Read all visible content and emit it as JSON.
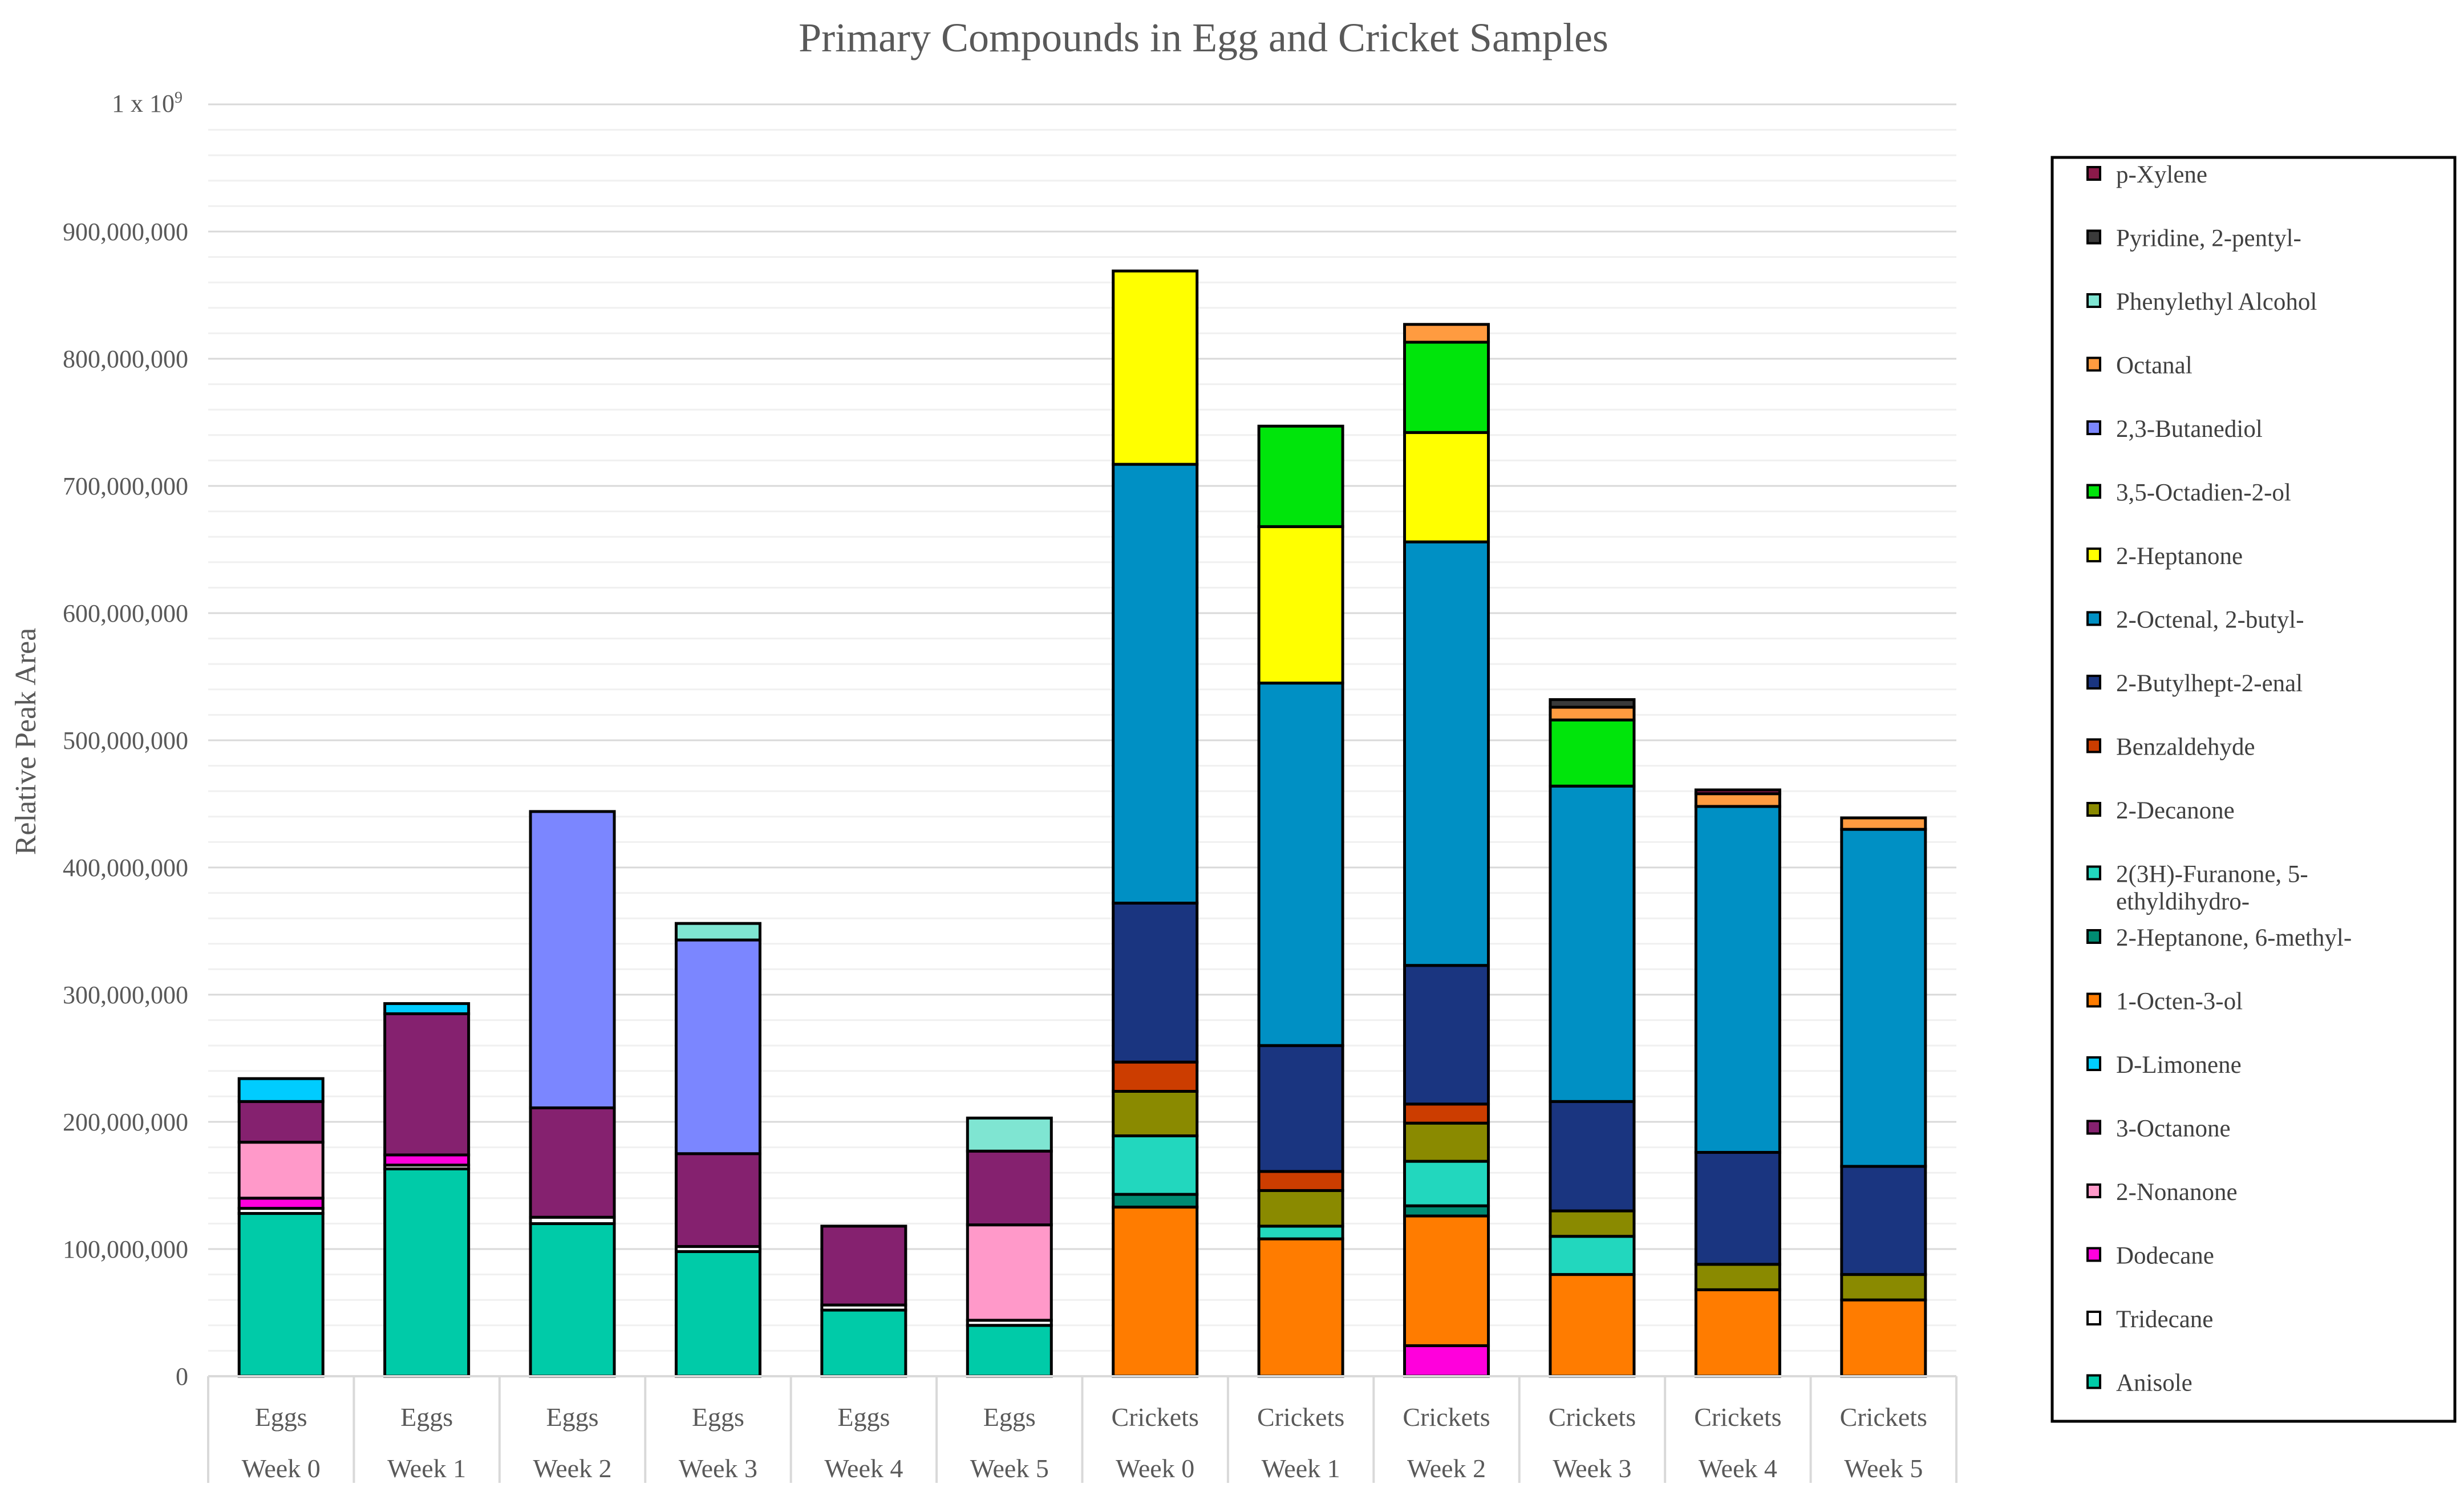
{
  "chart_data": {
    "type": "bar",
    "stacked": true,
    "title": "Primary Compounds in Egg and Cricket Samples",
    "ylabel": "Relative Peak Area",
    "xlabel": "",
    "ylim": [
      0,
      1000000000
    ],
    "y_ticks": [
      {
        "value": 0,
        "label": "0"
      },
      {
        "value": 100000000,
        "label": "100,000,000"
      },
      {
        "value": 200000000,
        "label": "200,000,000"
      },
      {
        "value": 300000000,
        "label": "300,000,000"
      },
      {
        "value": 400000000,
        "label": "400,000,000"
      },
      {
        "value": 500000000,
        "label": "500,000,000"
      },
      {
        "value": 600000000,
        "label": "600,000,000"
      },
      {
        "value": 700000000,
        "label": "700,000,000"
      },
      {
        "value": 800000000,
        "label": "800,000,000"
      },
      {
        "value": 900000000,
        "label": "900,000,000"
      }
    ],
    "y_top_label": {
      "base": "1 x 10",
      "exponent": "9"
    },
    "minor_grid_step": 20000000,
    "categories": [
      {
        "group": "Eggs",
        "week": "Week 0"
      },
      {
        "group": "Eggs",
        "week": "Week 1"
      },
      {
        "group": "Eggs",
        "week": "Week 2"
      },
      {
        "group": "Eggs",
        "week": "Week 3"
      },
      {
        "group": "Eggs",
        "week": "Week 4"
      },
      {
        "group": "Eggs",
        "week": "Week 5"
      },
      {
        "group": "Crickets",
        "week": "Week 0"
      },
      {
        "group": "Crickets",
        "week": "Week 1"
      },
      {
        "group": "Crickets",
        "week": "Week 2"
      },
      {
        "group": "Crickets",
        "week": "Week 3"
      },
      {
        "group": "Crickets",
        "week": "Week 4"
      },
      {
        "group": "Crickets",
        "week": "Week 5"
      }
    ],
    "series": [
      {
        "name": "Anisole",
        "color": "#00CBA8",
        "values": [
          128000000,
          163000000,
          120000000,
          98000000,
          52000000,
          40000000,
          0,
          0,
          0,
          0,
          0,
          0
        ]
      },
      {
        "name": "Tridecane",
        "color": "#FFFFFF",
        "values": [
          4000000,
          3000000,
          5000000,
          4000000,
          4000000,
          4000000,
          0,
          0,
          0,
          0,
          0,
          0
        ]
      },
      {
        "name": "Dodecane",
        "color": "#FF00DC",
        "values": [
          8000000,
          8000000,
          0,
          0,
          0,
          0,
          0,
          0,
          24000000,
          0,
          0,
          0
        ]
      },
      {
        "name": "2-Nonanone",
        "color": "#FF99C9",
        "values": [
          44000000,
          0,
          0,
          0,
          0,
          75000000,
          0,
          0,
          0,
          0,
          0,
          0
        ]
      },
      {
        "name": "3-Octanone",
        "color": "#85216F",
        "values": [
          32000000,
          111000000,
          86000000,
          73000000,
          62000000,
          58000000,
          0,
          0,
          0,
          0,
          0,
          0
        ]
      },
      {
        "name": "D-Limonene",
        "color": "#00CCFF",
        "values": [
          18000000,
          8000000,
          0,
          0,
          0,
          0,
          0,
          0,
          0,
          0,
          0,
          0
        ]
      },
      {
        "name": "1-Octen-3-ol",
        "color": "#FF7C00",
        "values": [
          0,
          0,
          0,
          0,
          0,
          0,
          133000000,
          108000000,
          102000000,
          80000000,
          68000000,
          60000000
        ]
      },
      {
        "name": "2-Heptanone, 6-methyl-",
        "color": "#008B72",
        "values": [
          0,
          0,
          0,
          0,
          0,
          0,
          10000000,
          0,
          8000000,
          0,
          0,
          0
        ]
      },
      {
        "name": "2(3H)-Furanone, 5-ethyldihydro-",
        "color": "#22D7BE",
        "values": [
          0,
          0,
          0,
          0,
          0,
          0,
          46000000,
          10000000,
          35000000,
          30000000,
          0,
          0
        ]
      },
      {
        "name": "2-Decanone",
        "color": "#8A8A00",
        "values": [
          0,
          0,
          0,
          0,
          0,
          0,
          35000000,
          28000000,
          30000000,
          20000000,
          20000000,
          20000000
        ]
      },
      {
        "name": "Benzaldehyde",
        "color": "#CC3D00",
        "values": [
          0,
          0,
          0,
          0,
          0,
          0,
          23000000,
          15000000,
          15000000,
          0,
          0,
          0
        ]
      },
      {
        "name": "2-Butylhept-2-enal",
        "color": "#1A3580",
        "values": [
          0,
          0,
          0,
          0,
          0,
          0,
          125000000,
          99000000,
          109000000,
          86000000,
          88000000,
          85000000
        ]
      },
      {
        "name": "2-Octenal, 2-butyl-",
        "color": "#0090C4",
        "values": [
          0,
          0,
          0,
          0,
          0,
          0,
          345000000,
          285000000,
          333000000,
          248000000,
          272000000,
          265000000
        ]
      },
      {
        "name": "2-Heptanone",
        "color": "#FFFF00",
        "values": [
          0,
          0,
          0,
          0,
          0,
          0,
          152000000,
          123000000,
          86000000,
          0,
          0,
          0
        ]
      },
      {
        "name": "3,5-Octadien-2-ol",
        "color": "#00E50B",
        "values": [
          0,
          0,
          0,
          0,
          0,
          0,
          0,
          79000000,
          71000000,
          52000000,
          0,
          0
        ]
      },
      {
        "name": "2,3-Butanediol",
        "color": "#7B86FF",
        "values": [
          0,
          0,
          233000000,
          168000000,
          0,
          0,
          0,
          0,
          0,
          0,
          0,
          0
        ]
      },
      {
        "name": "Octanal",
        "color": "#FF9B40",
        "values": [
          0,
          0,
          0,
          0,
          0,
          0,
          0,
          0,
          14000000,
          10000000,
          10000000,
          9000000
        ]
      },
      {
        "name": "Phenylethyl Alcohol",
        "color": "#7FE5D2",
        "values": [
          0,
          0,
          0,
          13000000,
          0,
          26000000,
          0,
          0,
          0,
          0,
          0,
          0
        ]
      },
      {
        "name": "Pyridine, 2-pentyl-",
        "color": "#3A3A3A",
        "values": [
          0,
          0,
          0,
          0,
          0,
          0,
          0,
          0,
          0,
          6000000,
          0,
          0
        ]
      },
      {
        "name": "p-Xylene",
        "color": "#8B1A4A",
        "values": [
          0,
          0,
          0,
          0,
          0,
          0,
          0,
          0,
          0,
          0,
          3000000,
          0
        ]
      }
    ],
    "legend": {
      "placement": "right",
      "order": "reverse"
    }
  }
}
